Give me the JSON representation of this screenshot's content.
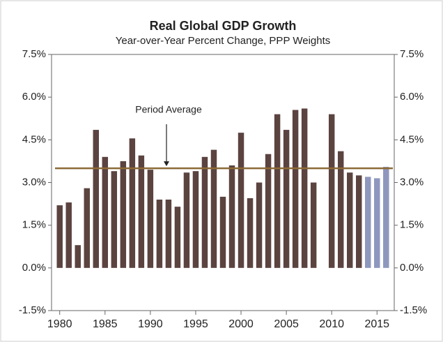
{
  "chart_data": {
    "type": "bar",
    "title": "Real Global GDP Growth",
    "subtitle": "Year-over-Year Percent Change, PPP Weights",
    "x": [
      1980,
      1981,
      1982,
      1983,
      1984,
      1985,
      1986,
      1987,
      1988,
      1989,
      1990,
      1991,
      1992,
      1993,
      1994,
      1995,
      1996,
      1997,
      1998,
      1999,
      2000,
      2001,
      2002,
      2003,
      2004,
      2005,
      2006,
      2007,
      2008,
      2009,
      2010,
      2011,
      2012,
      2013,
      2014,
      2015,
      2016
    ],
    "values": [
      2.2,
      2.3,
      0.8,
      2.8,
      4.85,
      3.9,
      3.4,
      3.75,
      4.55,
      3.95,
      3.45,
      2.4,
      2.4,
      2.15,
      3.35,
      3.4,
      3.9,
      4.15,
      2.5,
      3.6,
      4.75,
      2.45,
      3.0,
      4.0,
      5.4,
      4.85,
      5.55,
      5.6,
      3.0,
      0,
      5.4,
      4.1,
      3.35,
      3.25,
      3.2,
      3.15,
      3.55
    ],
    "bar_colors": [
      "#5b4340",
      "#5b4340",
      "#5b4340",
      "#5b4340",
      "#5b4340",
      "#5b4340",
      "#5b4340",
      "#5b4340",
      "#5b4340",
      "#5b4340",
      "#5b4340",
      "#5b4340",
      "#5b4340",
      "#5b4340",
      "#5b4340",
      "#5b4340",
      "#5b4340",
      "#5b4340",
      "#5b4340",
      "#5b4340",
      "#5b4340",
      "#5b4340",
      "#5b4340",
      "#5b4340",
      "#5b4340",
      "#5b4340",
      "#5b4340",
      "#5b4340",
      "#5b4340",
      "#5b4340",
      "#5b4340",
      "#5b4340",
      "#5b4340",
      "#5b4340",
      "#8e97bd",
      "#8e97bd",
      "#8e97bd"
    ],
    "average": 3.5,
    "average_color": "#8c6a35",
    "annotation": "Period Average",
    "xlim": [
      1979.1,
      2016.9
    ],
    "xticks": [
      1980,
      1985,
      1990,
      1995,
      2000,
      2005,
      2010,
      2015
    ],
    "ylim": [
      -1.5,
      7.5
    ],
    "yticks": [
      {
        "value": -1.5,
        "label": "-1.5%"
      },
      {
        "value": 0,
        "label": "0.0%"
      },
      {
        "value": 1.5,
        "label": "1.5%"
      },
      {
        "value": 3,
        "label": "3.0%"
      },
      {
        "value": 4.5,
        "label": "4.5%"
      },
      {
        "value": 6,
        "label": "6.0%"
      },
      {
        "value": 7.5,
        "label": "7.5%"
      }
    ],
    "y2lim": [
      -1.5,
      7.5
    ],
    "y2ticks": [
      {
        "value": -1.5,
        "label": "-1.5%"
      },
      {
        "value": 0,
        "label": "0.0%"
      },
      {
        "value": 1.5,
        "label": "1.5%"
      },
      {
        "value": 3,
        "label": "3.0%"
      },
      {
        "value": 4.5,
        "label": "4.5%"
      },
      {
        "value": 6,
        "label": "6.0%"
      },
      {
        "value": 7.5,
        "label": "7.5%"
      }
    ]
  }
}
